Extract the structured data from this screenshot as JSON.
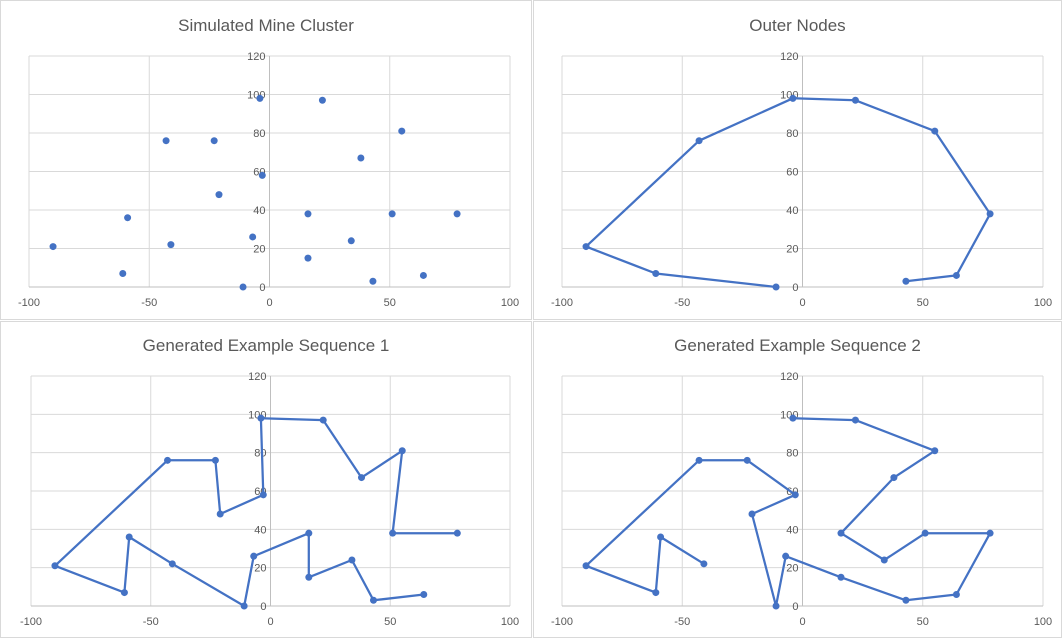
{
  "chart_data": [
    {
      "type": "scatter",
      "title": "Simulated Mine Cluster",
      "xlim": [
        -100,
        100
      ],
      "ylim": [
        0,
        120
      ],
      "x_ticks": [
        -100,
        -50,
        0,
        50,
        100
      ],
      "y_ticks": [
        0,
        20,
        40,
        60,
        80,
        100,
        120
      ],
      "grid": true,
      "series_color": "#4472c4",
      "series": [
        {
          "points": [
            [
              -90,
              21
            ],
            [
              -61,
              7
            ],
            [
              -59,
              36
            ],
            [
              -43,
              76
            ],
            [
              -41,
              22
            ],
            [
              -23,
              76
            ],
            [
              -21,
              48
            ],
            [
              -7,
              26
            ],
            [
              -4,
              98
            ],
            [
              -3,
              58
            ],
            [
              -11,
              0
            ],
            [
              16,
              38
            ],
            [
              16,
              15
            ],
            [
              22,
              97
            ],
            [
              34,
              24
            ],
            [
              38,
              67
            ],
            [
              43,
              3
            ],
            [
              51,
              38
            ],
            [
              55,
              81
            ],
            [
              64,
              6
            ],
            [
              78,
              38
            ]
          ]
        }
      ]
    },
    {
      "type": "line",
      "title": "Outer Nodes",
      "xlim": [
        -100,
        100
      ],
      "ylim": [
        0,
        120
      ],
      "x_ticks": [
        -100,
        -50,
        0,
        50,
        100
      ],
      "y_ticks": [
        0,
        20,
        40,
        60,
        80,
        100,
        120
      ],
      "grid": true,
      "series_color": "#4472c4",
      "series": [
        {
          "points": [
            [
              43,
              3
            ],
            [
              64,
              6
            ],
            [
              78,
              38
            ],
            [
              55,
              81
            ],
            [
              22,
              97
            ],
            [
              -4,
              98
            ],
            [
              -43,
              76
            ],
            [
              -90,
              21
            ],
            [
              -61,
              7
            ],
            [
              -11,
              0
            ]
          ]
        }
      ]
    },
    {
      "type": "line",
      "title": "Generated Example Sequence 1",
      "xlim": [
        -100,
        100
      ],
      "ylim": [
        0,
        120
      ],
      "x_ticks": [
        -100,
        -50,
        0,
        50,
        100
      ],
      "y_ticks": [
        0,
        20,
        40,
        60,
        80,
        100,
        120
      ],
      "grid": true,
      "series_color": "#4472c4",
      "series": [
        {
          "points": [
            [
              64,
              6
            ],
            [
              43,
              3
            ],
            [
              34,
              24
            ],
            [
              16,
              15
            ],
            [
              16,
              38
            ],
            [
              -7,
              26
            ],
            [
              -11,
              0
            ],
            [
              -41,
              22
            ],
            [
              -59,
              36
            ],
            [
              -61,
              7
            ],
            [
              -90,
              21
            ],
            [
              -43,
              76
            ],
            [
              -23,
              76
            ],
            [
              -21,
              48
            ],
            [
              -3,
              58
            ],
            [
              -4,
              98
            ],
            [
              22,
              97
            ],
            [
              38,
              67
            ],
            [
              55,
              81
            ],
            [
              51,
              38
            ],
            [
              78,
              38
            ]
          ]
        }
      ]
    },
    {
      "type": "line",
      "title": "Generated Example Sequence 2",
      "xlim": [
        -100,
        100
      ],
      "ylim": [
        0,
        120
      ],
      "x_ticks": [
        -100,
        -50,
        0,
        50,
        100
      ],
      "y_ticks": [
        0,
        20,
        40,
        60,
        80,
        100,
        120
      ],
      "grid": true,
      "series_color": "#4472c4",
      "series": [
        {
          "points": [
            [
              -41,
              22
            ],
            [
              -59,
              36
            ],
            [
              -61,
              7
            ],
            [
              -90,
              21
            ],
            [
              -43,
              76
            ],
            [
              -23,
              76
            ],
            [
              -3,
              58
            ],
            [
              -21,
              48
            ],
            [
              -11,
              0
            ],
            [
              -7,
              26
            ],
            [
              16,
              15
            ],
            [
              43,
              3
            ],
            [
              64,
              6
            ],
            [
              78,
              38
            ],
            [
              51,
              38
            ],
            [
              34,
              24
            ],
            [
              16,
              38
            ],
            [
              38,
              67
            ],
            [
              55,
              81
            ],
            [
              22,
              97
            ],
            [
              -4,
              98
            ]
          ]
        }
      ]
    }
  ]
}
